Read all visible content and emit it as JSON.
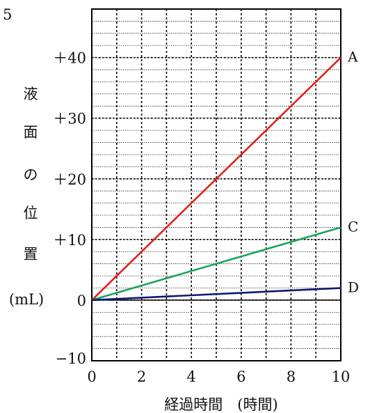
{
  "figure_number": "5",
  "chart_data": {
    "type": "line",
    "xlabel": "経過時間　(時間)",
    "ylabel": [
      "液",
      "面",
      "の",
      "位",
      "置",
      "(mL)"
    ],
    "xlim": [
      0,
      10
    ],
    "ylim": [
      -10,
      48
    ],
    "x_ticks": [
      0,
      2,
      4,
      6,
      8,
      10
    ],
    "y_ticks": [
      {
        "value": 40,
        "label": "＋40"
      },
      {
        "value": 30,
        "label": "＋30"
      },
      {
        "value": 20,
        "label": "＋20"
      },
      {
        "value": 10,
        "label": "＋10"
      },
      {
        "value": 0,
        "label": "0"
      },
      {
        "value": -10,
        "label": "−10"
      }
    ],
    "grid": true,
    "series": [
      {
        "name": "A",
        "color": "#e0201b",
        "x": [
          0,
          10
        ],
        "y": [
          0,
          40
        ]
      },
      {
        "name": "C",
        "color": "#1aa55a",
        "x": [
          0,
          10
        ],
        "y": [
          0,
          12
        ]
      },
      {
        "name": "D",
        "color": "#0b1a6e",
        "x": [
          0,
          10
        ],
        "y": [
          0,
          2
        ]
      }
    ]
  }
}
